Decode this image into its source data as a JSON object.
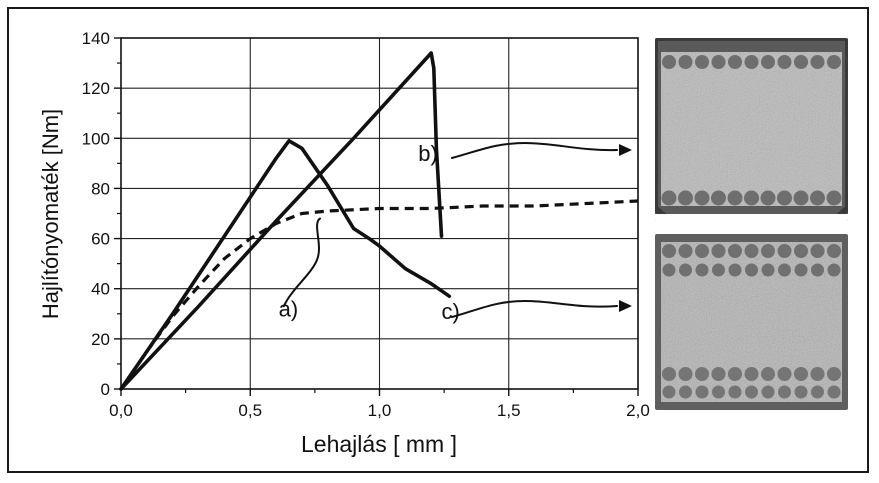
{
  "chart_data": {
    "type": "line",
    "title": "",
    "xlabel": "Lehajlás [ mm ]",
    "ylabel": "Hajlítónyomaték [Nm]",
    "xlim": [
      0,
      2.0
    ],
    "ylim": [
      0,
      140
    ],
    "x_ticks": [
      "0,0",
      "0,5",
      "1,0",
      "1,5",
      "2,0"
    ],
    "y_ticks": [
      "0",
      "20",
      "40",
      "60",
      "80",
      "100",
      "120",
      "140"
    ],
    "grid": true,
    "series": [
      {
        "name": "a)",
        "style": "dashed",
        "color": "#111111",
        "x": [
          0,
          0.1,
          0.2,
          0.3,
          0.4,
          0.5,
          0.6,
          0.7,
          0.8,
          1.0,
          1.2,
          1.4,
          1.6,
          1.8,
          2.0
        ],
        "y": [
          0,
          15,
          29,
          41,
          52,
          60,
          66,
          70,
          71,
          72,
          72,
          73,
          73,
          74,
          75
        ]
      },
      {
        "name": "b)",
        "style": "solid",
        "color": "#111111",
        "x": [
          0,
          0.3,
          0.6,
          0.9,
          1.2,
          1.21,
          1.22,
          1.24
        ],
        "y": [
          0,
          33,
          67,
          100,
          134,
          128,
          96,
          61
        ]
      },
      {
        "name": "c)",
        "style": "solid",
        "color": "#111111",
        "x": [
          0,
          0.2,
          0.4,
          0.6,
          0.65,
          0.7,
          0.8,
          0.9,
          0.96,
          1.0,
          1.1,
          1.2,
          1.27
        ],
        "y": [
          0,
          30,
          61,
          92,
          99,
          96,
          81,
          64,
          60,
          57,
          48,
          42,
          37
        ]
      }
    ],
    "annotations": [
      {
        "label": "a)",
        "x": 0.61,
        "y": 29
      },
      {
        "label": "b)",
        "x": 1.15,
        "y": 91
      },
      {
        "label": "c)",
        "x": 1.24,
        "y": 28
      }
    ]
  }
}
